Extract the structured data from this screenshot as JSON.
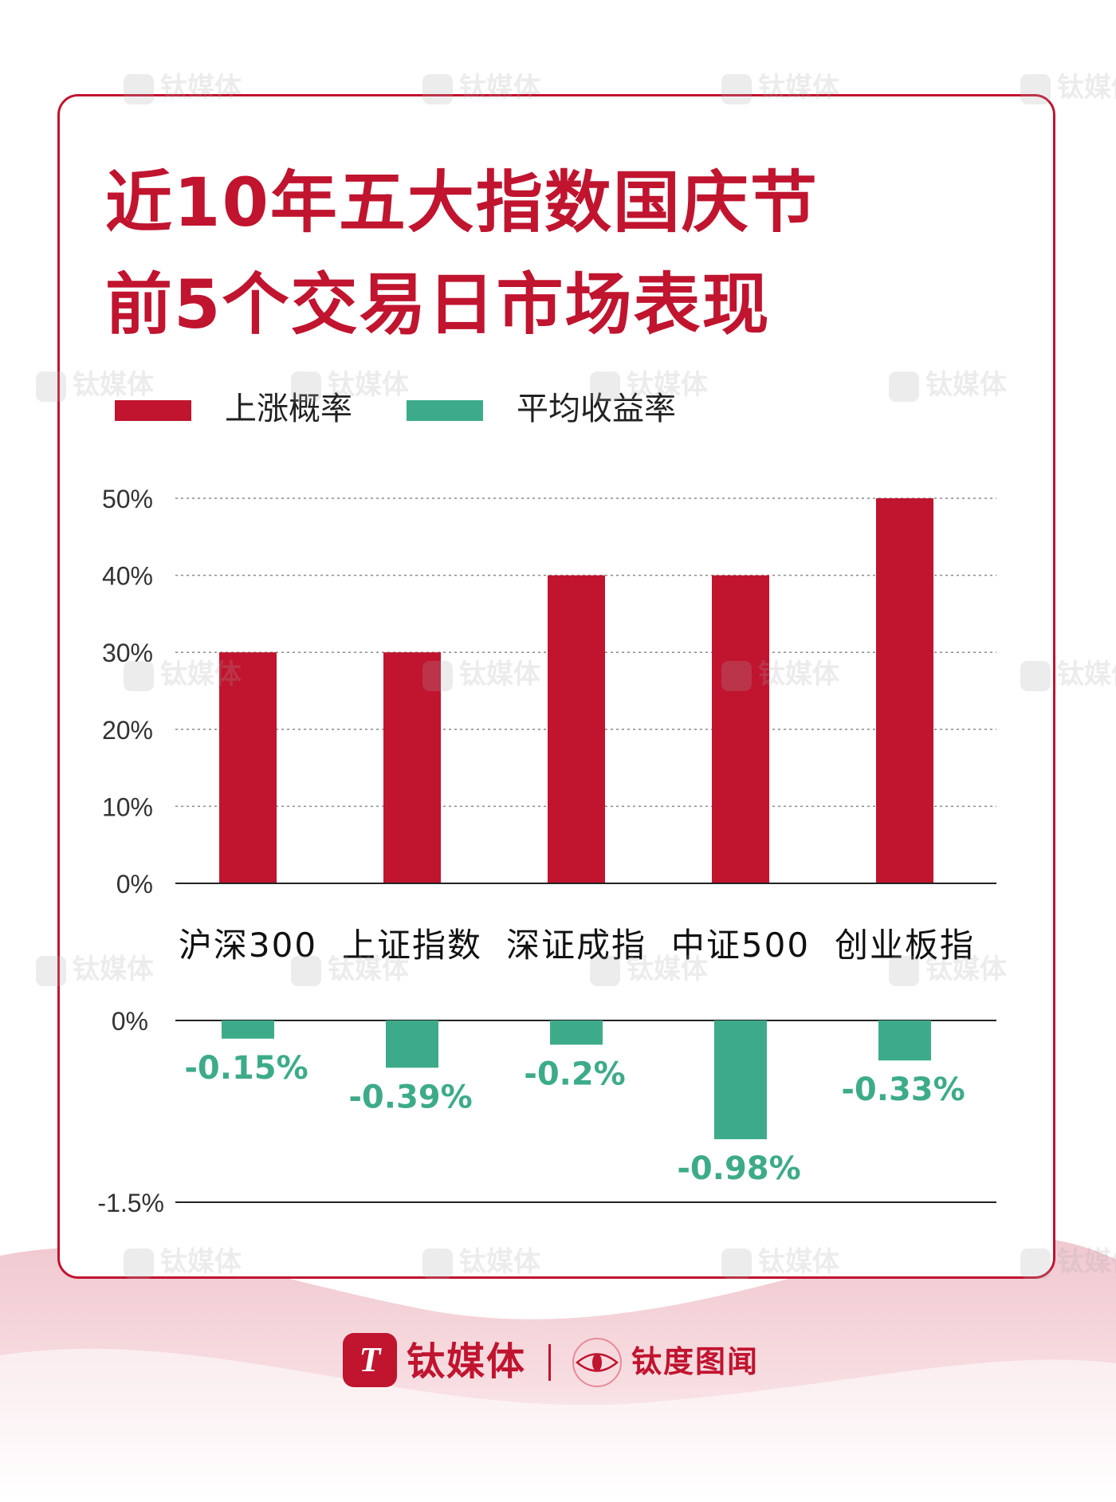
{
  "title": {
    "line1": "近10年五大指数国庆节",
    "line2": "前5个交易日市场表现"
  },
  "colors": {
    "accent": "#c0142f",
    "teal": "#3dab8a"
  },
  "legend": [
    {
      "label": "上涨概率",
      "color": "#c0142f"
    },
    {
      "label": "平均收益率",
      "color": "#3dab8a"
    }
  ],
  "chart_data": {
    "type": "bar",
    "categories": [
      "沪深300",
      "上证指数",
      "深证成指",
      "中证500",
      "创业板指"
    ],
    "series": [
      {
        "name": "上涨概率",
        "values": [
          30,
          30,
          40,
          40,
          50
        ],
        "ylim": [
          0,
          50
        ],
        "yticks": [
          "50%",
          "40%",
          "30%",
          "20%",
          "10%",
          "0%"
        ],
        "ytick_values": [
          50,
          40,
          30,
          20,
          10,
          0
        ]
      },
      {
        "name": "平均收益率",
        "values": [
          -0.15,
          -0.39,
          -0.2,
          -0.98,
          -0.33
        ],
        "labels": [
          "-0.15%",
          "-0.39%",
          "-0.2%",
          "-0.98%",
          "-0.33%"
        ],
        "ylim": [
          -1.5,
          0
        ],
        "yticks": [
          "0%",
          "-1.5%"
        ],
        "ytick_values": [
          0,
          -1.5
        ]
      }
    ],
    "grid": true,
    "legend_position": "top-left"
  },
  "brand": {
    "logo_icon": "titanium-media-logo-icon",
    "name": "钛媒体",
    "eye_icon": "eye-circle-icon",
    "sub": "钛度图闻"
  },
  "watermark_text": "钛媒体"
}
